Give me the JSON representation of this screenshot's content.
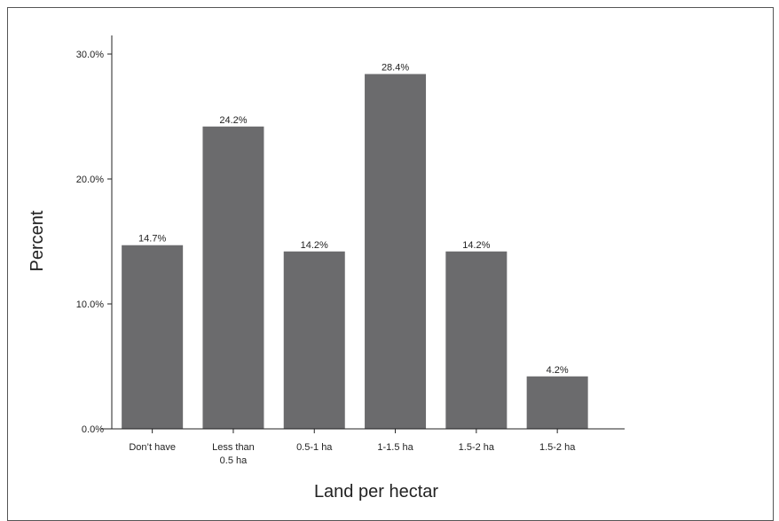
{
  "chart_data": {
    "type": "bar",
    "categories": [
      [
        "Don’t have"
      ],
      [
        "Less than",
        "0.5 ha"
      ],
      [
        "0.5-1 ha"
      ],
      [
        "1-1.5 ha"
      ],
      [
        "1.5-2 ha"
      ],
      [
        "1.5-2 ha"
      ]
    ],
    "values": [
      14.7,
      24.2,
      14.2,
      28.4,
      14.2,
      4.2
    ],
    "data_labels": [
      "14.7%",
      "24.2%",
      "14.2%",
      "28.4%",
      "14.2%",
      "4.2%"
    ],
    "title": "",
    "xlabel": "Land per hectar",
    "ylabel": "Percent",
    "ylim": [
      0,
      30
    ],
    "yticks": [
      0,
      10,
      20,
      30
    ],
    "ytick_labels": [
      "0.0%",
      "10.0%",
      "20.0%",
      "30.0%"
    ],
    "grid": false,
    "bar_color": "#6b6b6d"
  }
}
